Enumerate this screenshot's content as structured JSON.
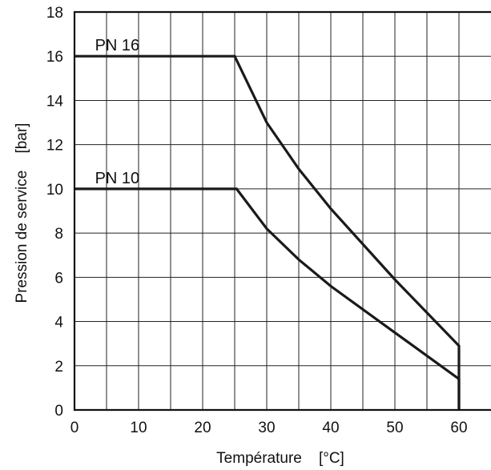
{
  "chart_data": {
    "type": "line",
    "title": "",
    "xlabel": "Température    [°C]",
    "ylabel": "Pression de service    [bar]",
    "xlim": [
      0,
      65
    ],
    "ylim": [
      0,
      18
    ],
    "x_ticks": [
      0,
      10,
      20,
      30,
      40,
      50,
      60
    ],
    "y_ticks": [
      0,
      2,
      4,
      6,
      8,
      10,
      12,
      14,
      16,
      18
    ],
    "x_grid_step": 5,
    "y_grid_step": 2,
    "grid": true,
    "line_color": "#1a1a1a",
    "series": [
      {
        "name": "PN 16",
        "points": [
          [
            0,
            16
          ],
          [
            25,
            16
          ],
          [
            30,
            13
          ],
          [
            35,
            10.9
          ],
          [
            40,
            9.1
          ],
          [
            50,
            5.9
          ],
          [
            60,
            2.9
          ],
          [
            60,
            0
          ]
        ]
      },
      {
        "name": "PN 10",
        "points": [
          [
            0,
            10
          ],
          [
            25.3,
            10
          ],
          [
            30,
            8.2
          ],
          [
            35,
            6.8
          ],
          [
            40,
            5.6
          ],
          [
            50,
            3.5
          ],
          [
            60,
            1.4
          ],
          [
            60,
            0
          ]
        ]
      }
    ]
  }
}
